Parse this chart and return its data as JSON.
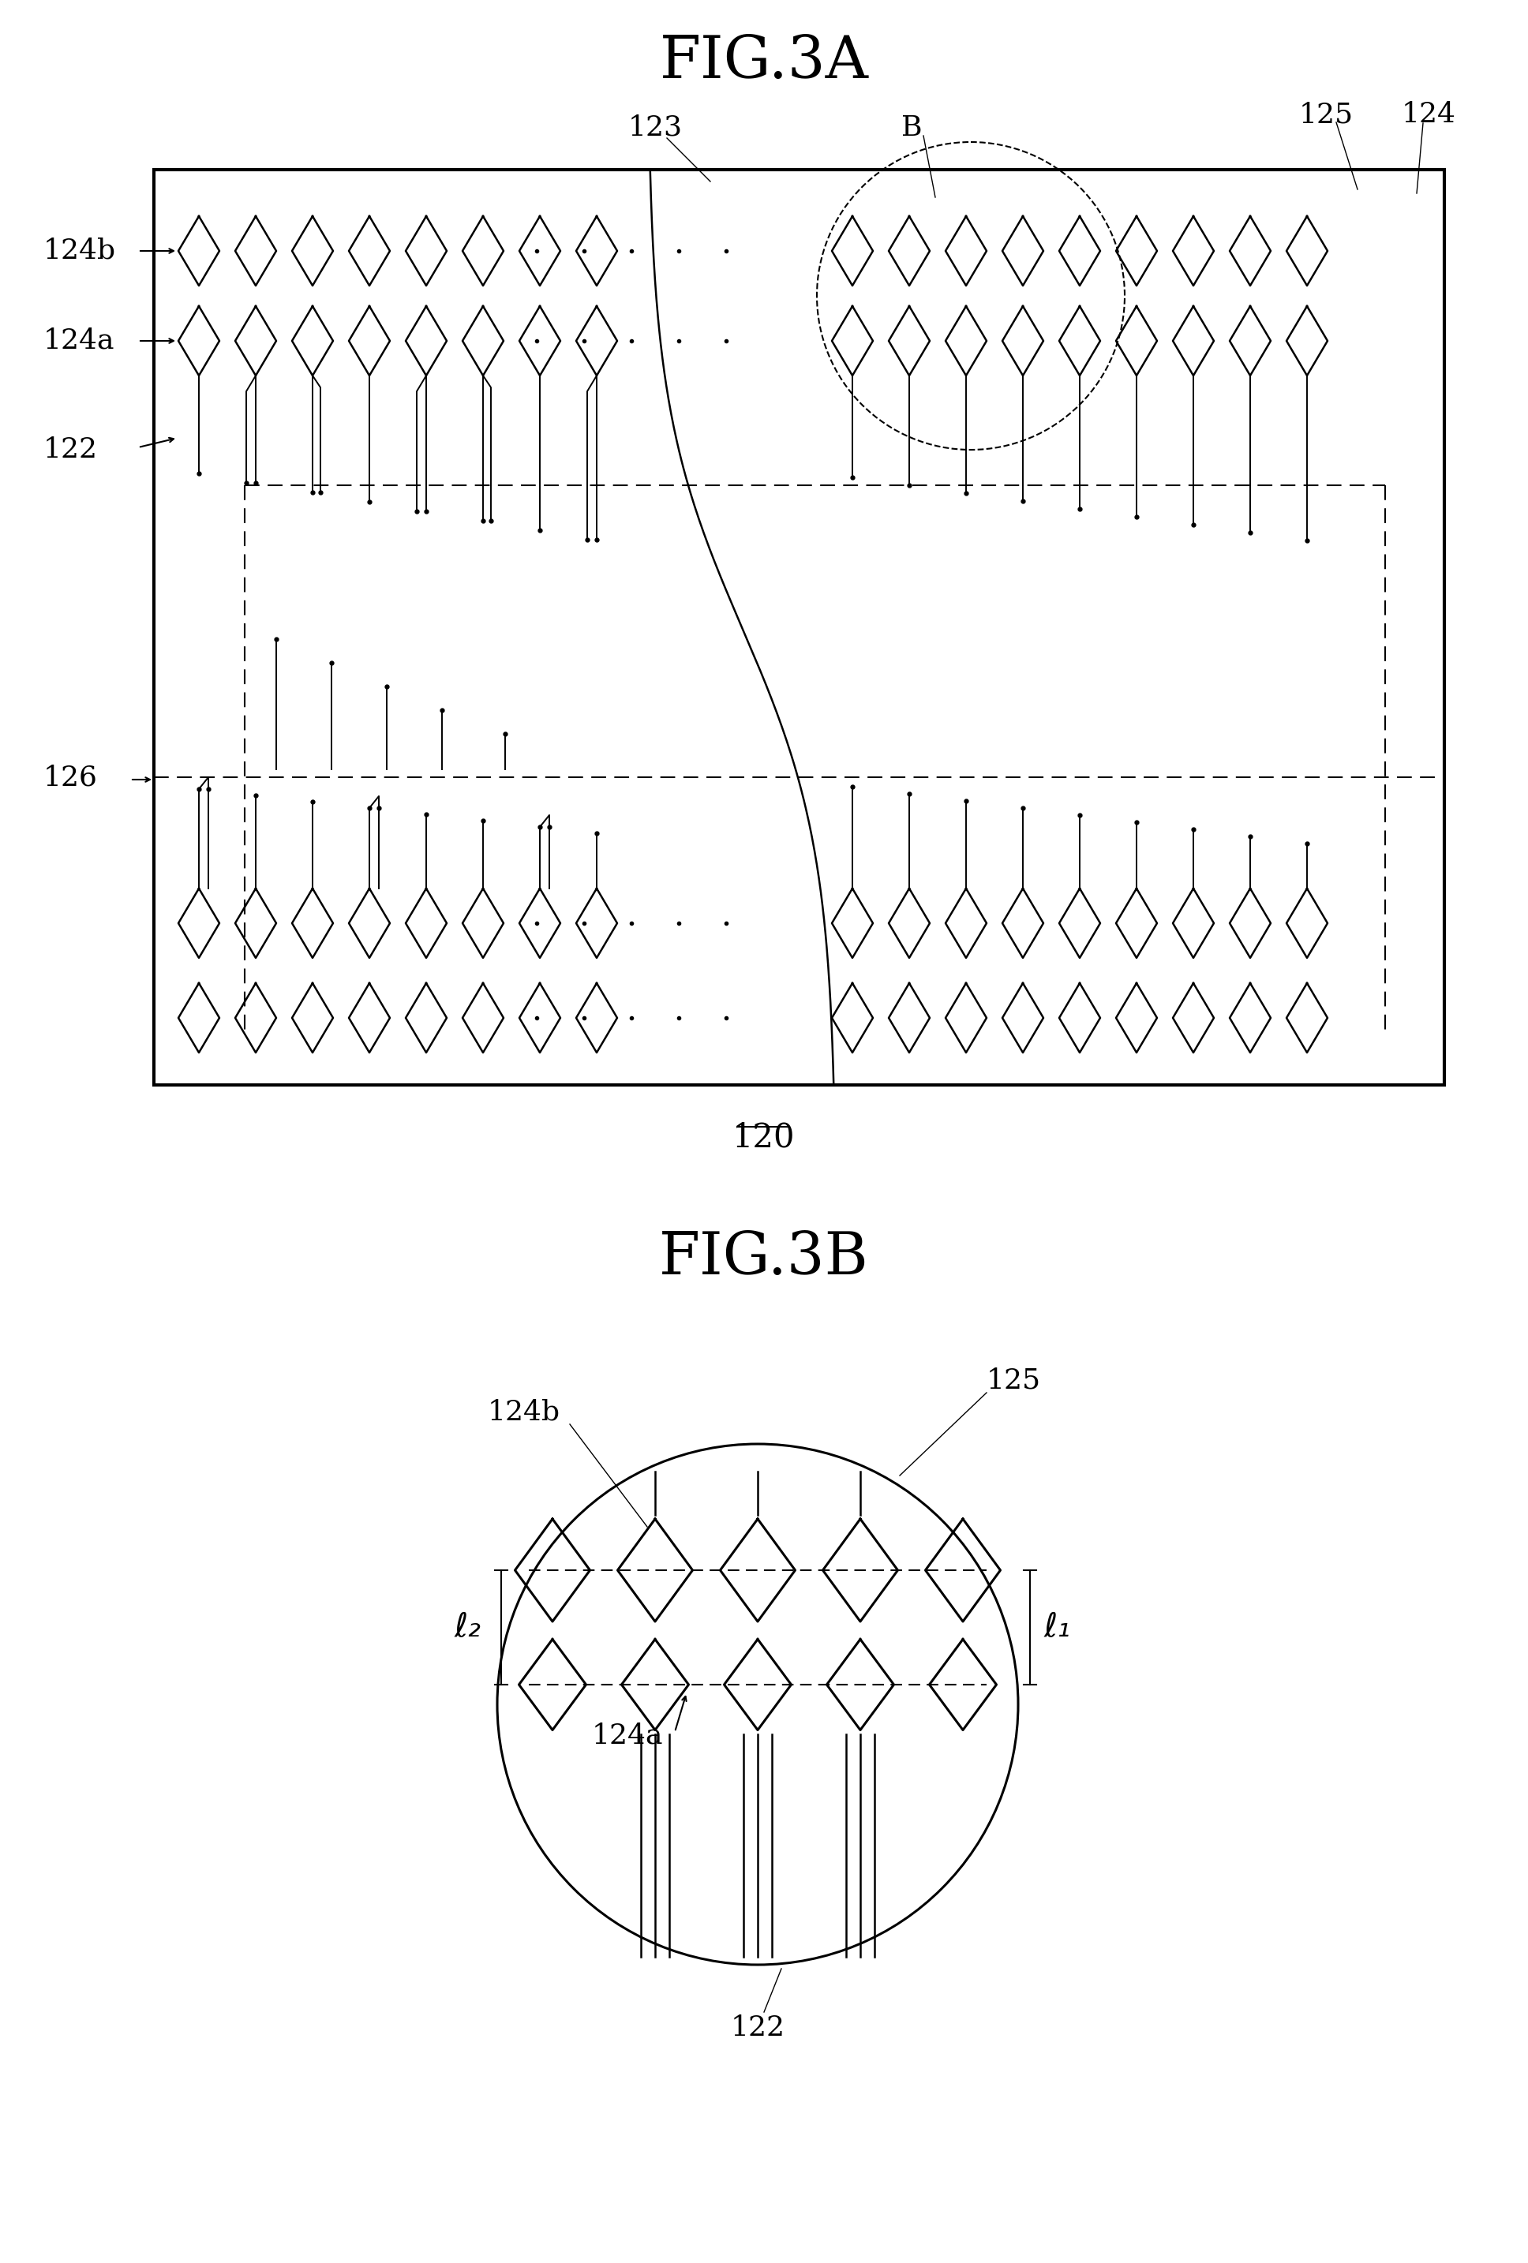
{
  "fig_title_3A": "FIG.3A",
  "fig_title_3B": "FIG.3B",
  "label_120": "120",
  "label_122": "122",
  "label_123": "123",
  "label_124": "124",
  "label_124a": "124a",
  "label_124b": "124b",
  "label_125": "125",
  "label_126": "126",
  "label_B": "B",
  "label_l1": "ℓ₁",
  "label_l2": "ℓ₂",
  "bg_color": "#ffffff",
  "line_color": "#000000"
}
